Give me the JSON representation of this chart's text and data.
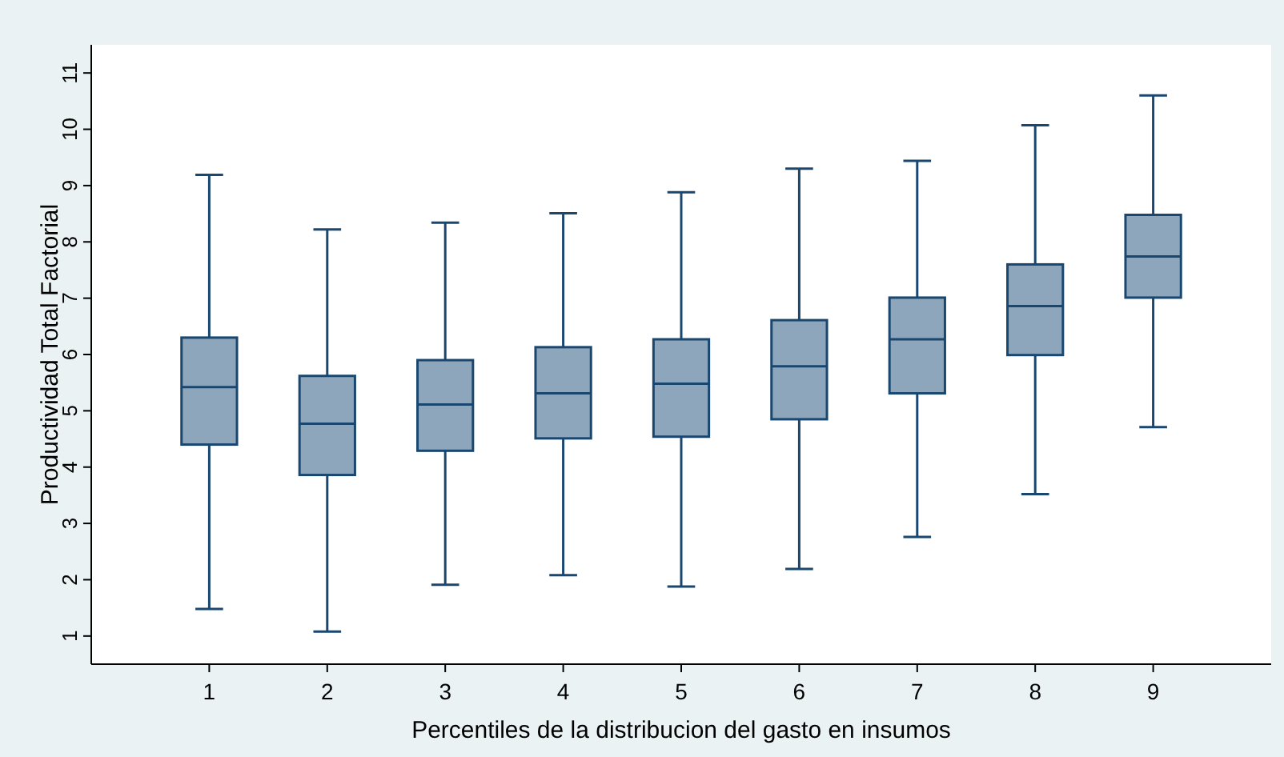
{
  "chart_data": {
    "type": "box",
    "xlabel": "Percentiles de la distribucion del gasto en insumos",
    "ylabel": "Productividad Total Factorial",
    "categories": [
      "1",
      "2",
      "3",
      "4",
      "5",
      "6",
      "7",
      "8",
      "9"
    ],
    "color": "#8ea6bb",
    "ylim": [
      0.5,
      11.5
    ],
    "yticks": [
      1,
      2,
      3,
      4,
      5,
      6,
      7,
      8,
      9,
      10,
      11
    ],
    "grid": false,
    "boxes": [
      {
        "low": 1.48,
        "q1": 4.4,
        "median": 5.42,
        "q3": 6.3,
        "high": 9.19
      },
      {
        "low": 1.08,
        "q1": 3.86,
        "median": 4.77,
        "q3": 5.62,
        "high": 8.22
      },
      {
        "low": 1.91,
        "q1": 4.29,
        "median": 5.11,
        "q3": 5.9,
        "high": 8.34
      },
      {
        "low": 2.08,
        "q1": 4.51,
        "median": 5.31,
        "q3": 6.13,
        "high": 8.51
      },
      {
        "low": 1.88,
        "q1": 4.54,
        "median": 5.48,
        "q3": 6.27,
        "high": 8.88
      },
      {
        "low": 2.19,
        "q1": 4.85,
        "median": 5.79,
        "q3": 6.61,
        "high": 9.3
      },
      {
        "low": 2.76,
        "q1": 5.31,
        "median": 6.27,
        "q3": 7.01,
        "high": 9.44
      },
      {
        "low": 3.52,
        "q1": 5.99,
        "median": 6.86,
        "q3": 7.6,
        "high": 10.07
      },
      {
        "low": 4.71,
        "q1": 7.01,
        "median": 7.74,
        "q3": 8.48,
        "high": 10.6
      }
    ]
  }
}
